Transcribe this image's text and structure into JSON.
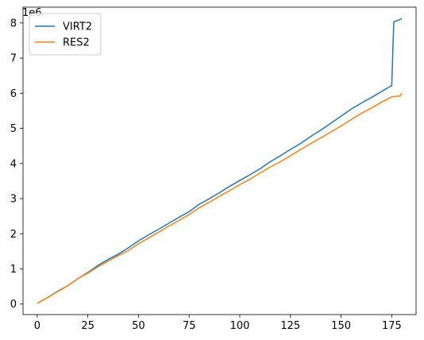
{
  "chart_data": {
    "type": "line",
    "offset_text": "1e6",
    "scale": 1000000,
    "xlim": [
      -7,
      187
    ],
    "ylim": [
      -0.3,
      8.45
    ],
    "x_ticks": [
      0,
      25,
      50,
      75,
      100,
      125,
      150,
      175
    ],
    "x_tick_labels": [
      "0",
      "25",
      "50",
      "75",
      "100",
      "125",
      "150",
      "175"
    ],
    "y_ticks": [
      0,
      1,
      2,
      3,
      4,
      5,
      6,
      7,
      8
    ],
    "y_tick_labels": [
      "0",
      "1",
      "2",
      "3",
      "4",
      "5",
      "6",
      "7",
      "8"
    ],
    "grid": false,
    "legend_position": "upper-left",
    "series": [
      {
        "name": "VIRT2",
        "color": "#1f77b4",
        "points": [
          [
            0,
            0.02
          ],
          [
            5,
            0.18
          ],
          [
            10,
            0.36
          ],
          [
            15,
            0.52
          ],
          [
            20,
            0.72
          ],
          [
            25,
            0.9
          ],
          [
            30,
            1.1
          ],
          [
            35,
            1.27
          ],
          [
            40,
            1.42
          ],
          [
            45,
            1.6
          ],
          [
            50,
            1.8
          ],
          [
            55,
            1.97
          ],
          [
            60,
            2.13
          ],
          [
            65,
            2.3
          ],
          [
            70,
            2.47
          ],
          [
            75,
            2.63
          ],
          [
            80,
            2.84
          ],
          [
            85,
            3.0
          ],
          [
            90,
            3.17
          ],
          [
            95,
            3.35
          ],
          [
            100,
            3.52
          ],
          [
            105,
            3.68
          ],
          [
            110,
            3.85
          ],
          [
            115,
            4.05
          ],
          [
            120,
            4.22
          ],
          [
            125,
            4.4
          ],
          [
            130,
            4.57
          ],
          [
            135,
            4.77
          ],
          [
            140,
            4.95
          ],
          [
            145,
            5.15
          ],
          [
            150,
            5.35
          ],
          [
            155,
            5.55
          ],
          [
            160,
            5.72
          ],
          [
            165,
            5.88
          ],
          [
            170,
            6.05
          ],
          [
            175,
            6.22
          ],
          [
            176,
            8.03
          ],
          [
            180,
            8.12
          ]
        ]
      },
      {
        "name": "RES2",
        "color": "#ff7f0e",
        "points": [
          [
            0,
            0.02
          ],
          [
            5,
            0.18
          ],
          [
            10,
            0.35
          ],
          [
            15,
            0.52
          ],
          [
            20,
            0.72
          ],
          [
            25,
            0.88
          ],
          [
            30,
            1.06
          ],
          [
            35,
            1.22
          ],
          [
            40,
            1.38
          ],
          [
            45,
            1.52
          ],
          [
            50,
            1.72
          ],
          [
            55,
            1.88
          ],
          [
            60,
            2.05
          ],
          [
            65,
            2.22
          ],
          [
            70,
            2.38
          ],
          [
            75,
            2.55
          ],
          [
            80,
            2.74
          ],
          [
            85,
            2.9
          ],
          [
            90,
            3.07
          ],
          [
            95,
            3.23
          ],
          [
            100,
            3.4
          ],
          [
            105,
            3.55
          ],
          [
            110,
            3.73
          ],
          [
            115,
            3.9
          ],
          [
            120,
            4.05
          ],
          [
            125,
            4.22
          ],
          [
            130,
            4.4
          ],
          [
            135,
            4.57
          ],
          [
            140,
            4.73
          ],
          [
            145,
            4.9
          ],
          [
            150,
            5.07
          ],
          [
            155,
            5.25
          ],
          [
            160,
            5.43
          ],
          [
            165,
            5.58
          ],
          [
            170,
            5.75
          ],
          [
            175,
            5.9
          ],
          [
            179,
            5.92
          ],
          [
            180,
            6.0
          ]
        ]
      }
    ]
  }
}
